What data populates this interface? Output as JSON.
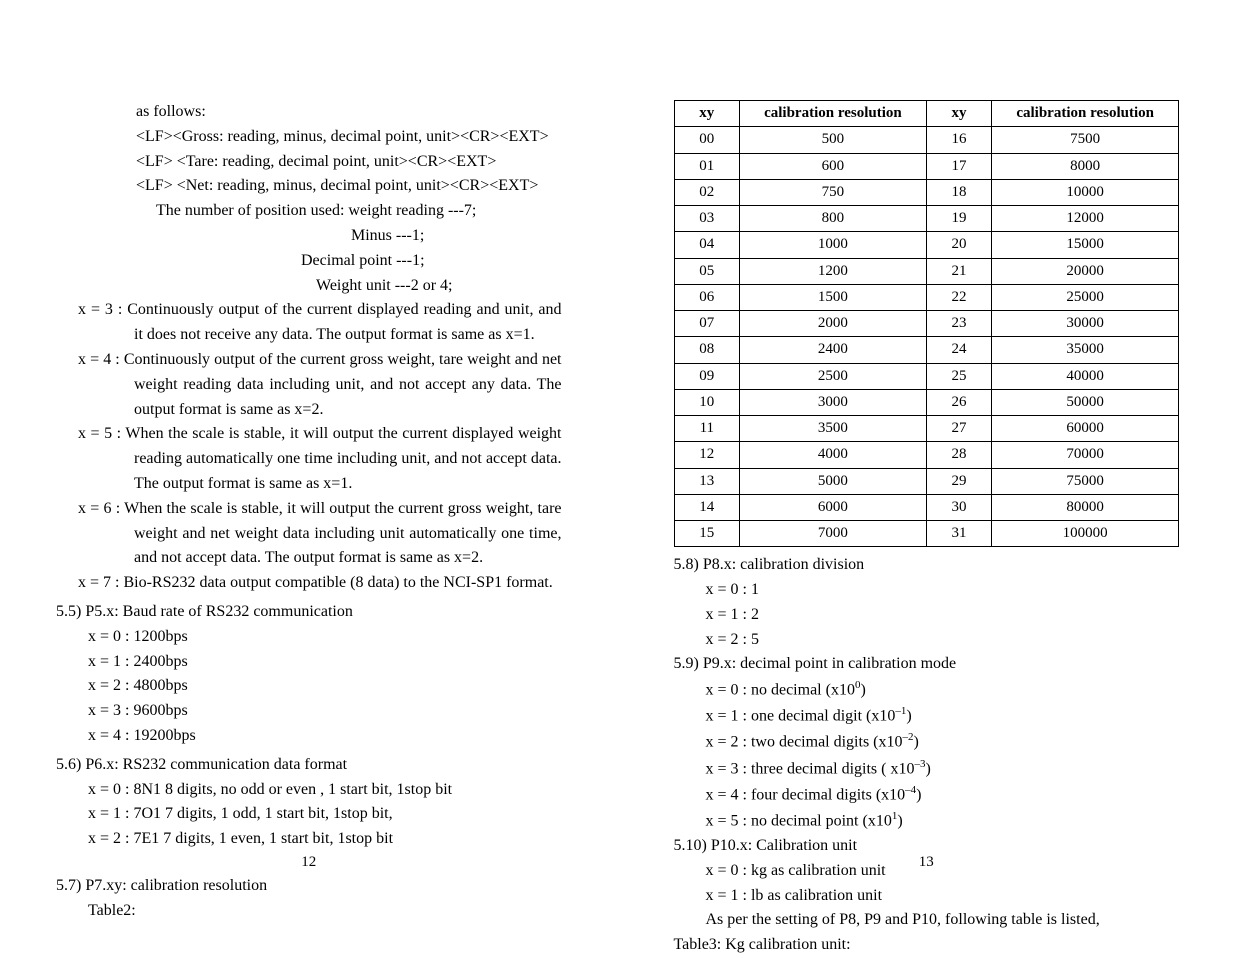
{
  "left": {
    "pageNum": "12",
    "lines": {
      "asfollows": "as follows:",
      "lf1": "<LF><Gross: reading, minus, decimal point, unit><CR><EXT>",
      "lf2": "<LF> <Tare: reading, decimal point, unit><CR><EXT>",
      "lf3": "<LF> <Net: reading, minus, decimal point, unit><CR><EXT>",
      "numpos": "The number of position used: weight reading ---7;",
      "minus": "Minus ---1;",
      "dp": "Decimal point ---1;",
      "wu": "Weight unit ---2 or 4;",
      "x3": "x = 3 : Continuously output of the current displayed reading and unit, and it does not receive any data. The output format is same as x=1.",
      "x4": "x = 4 : Continuously output of the current gross weight, tare weight and net weight reading data including unit, and not accept any data. The output format is same as x=2.",
      "x5": "x = 5 : When the scale is stable, it will output the current displayed weight reading automatically one time including unit, and not accept data. The output format is same as x=1.",
      "x6": "x = 6 : When the scale is stable, it will output the current gross weight, tare weight and net weight data including unit automatically one time, and not accept data. The output format is same as x=2.",
      "x7": "x = 7 : Bio-RS232 data output compatible (8 data) to the NCI-SP1 format.",
      "s55": "5.5) P5.x: Baud rate of RS232 communication",
      "b0": "x = 0 : 1200bps",
      "b1": "x = 1 : 2400bps",
      "b2": "x = 2 : 4800bps",
      "b3": "x = 3 : 9600bps",
      "b4": "x = 4 : 19200bps",
      "s56": "5.6) P6.x: RS232 communication data format",
      "d0": "x = 0 : 8N1    8 digits, no odd or even , 1 start bit, 1stop bit",
      "d1": "x = 1 : 7O1    7 digits, 1 odd, 1 start bit, 1stop bit,",
      "d2": "x = 2 : 7E1    7 digits, 1 even, 1 start bit, 1stop bit",
      "s57": "5.7) P7.xy: calibration resolution",
      "t2": "Table2:"
    }
  },
  "right": {
    "pageNum": "13",
    "table": {
      "h1": "xy",
      "h2": "calibration resolution",
      "h3": "xy",
      "h4": "calibration resolution",
      "rows": [
        [
          "00",
          "500",
          "16",
          "7500"
        ],
        [
          "01",
          "600",
          "17",
          "8000"
        ],
        [
          "02",
          "750",
          "18",
          "10000"
        ],
        [
          "03",
          "800",
          "19",
          "12000"
        ],
        [
          "04",
          "1000",
          "20",
          "15000"
        ],
        [
          "05",
          "1200",
          "21",
          "20000"
        ],
        [
          "06",
          "1500",
          "22",
          "25000"
        ],
        [
          "07",
          "2000",
          "23",
          "30000"
        ],
        [
          "08",
          "2400",
          "24",
          "35000"
        ],
        [
          "09",
          "2500",
          "25",
          "40000"
        ],
        [
          "10",
          "3000",
          "26",
          "50000"
        ],
        [
          "11",
          "3500",
          "27",
          "60000"
        ],
        [
          "12",
          "4000",
          "28",
          "70000"
        ],
        [
          "13",
          "5000",
          "29",
          "75000"
        ],
        [
          "14",
          "6000",
          "30",
          "80000"
        ],
        [
          "15",
          "7000",
          "31",
          "100000"
        ]
      ]
    },
    "lines": {
      "s58": "5.8) P8.x: calibration division",
      "p80": "x = 0 : 1",
      "p81": "x = 1 : 2",
      "p82": "x = 2 : 5",
      "s59": "5.9) P9.x: decimal point in calibration mode",
      "d0a": "x = 0 : no decimal (x10",
      "d0b": ")",
      "d1a": "x = 1 : one decimal digit (x10",
      "d1b": ")",
      "d2a": "x = 2 : two decimal digits (x10",
      "d2b": ")",
      "d3a": "x = 3 : three decimal digits ( x10",
      "d3b": ")",
      "d4a": "x = 4 : four decimal digits (x10",
      "d4b": ")",
      "d5a": "x = 5 : no decimal point (x10",
      "d5b": ")",
      "sup0": "0",
      "supn1": "–1",
      "supn2": "–2",
      "supn3": "–3",
      "supn4": "–4",
      "sup1": "1",
      "s510": "5.10) P10.x: Calibration unit",
      "u0": "x = 0 : kg as calibration unit",
      "u1": "x = 1 : lb as calibration unit",
      "asper": "As per the setting of P8, P9 and P10, following table is listed,",
      "t3": "Table3: Kg calibration unit:"
    }
  }
}
